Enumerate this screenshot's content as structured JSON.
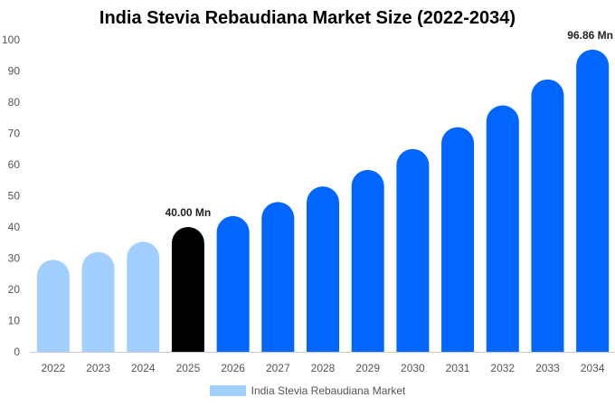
{
  "chart_data": {
    "type": "bar",
    "title": "India Stevia Rebaudiana Market Size (2022-2034)",
    "xlabel": "",
    "ylabel": "",
    "categories": [
      "2022",
      "2023",
      "2024",
      "2025",
      "2026",
      "2027",
      "2028",
      "2029",
      "2030",
      "2031",
      "2032",
      "2033",
      "2034"
    ],
    "series": [
      {
        "name": "India Stevia Rebaudiana Market",
        "values": [
          29.5,
          32.0,
          35.3,
          40.0,
          43.5,
          48.0,
          53.0,
          58.3,
          65.0,
          72.0,
          79.0,
          87.3,
          96.86
        ]
      }
    ],
    "ylim": [
      0,
      100
    ],
    "yticks": [
      0,
      10,
      20,
      30,
      40,
      50,
      60,
      70,
      80,
      90,
      100
    ],
    "grid": false,
    "legend_position": "bottom",
    "data_labels": [
      {
        "category": "2025",
        "text": "40.00 Mn"
      },
      {
        "category": "2034",
        "text": "96.86 Mn"
      }
    ],
    "colors": {
      "historical": "#a3cfff",
      "current": "#000000",
      "forecast": "#0066ff",
      "axis": "#cccccc"
    },
    "bar_color_groups": {
      "historical": [
        "2022",
        "2023",
        "2024"
      ],
      "current": [
        "2025"
      ],
      "forecast": [
        "2026",
        "2027",
        "2028",
        "2029",
        "2030",
        "2031",
        "2032",
        "2033",
        "2034"
      ]
    }
  }
}
